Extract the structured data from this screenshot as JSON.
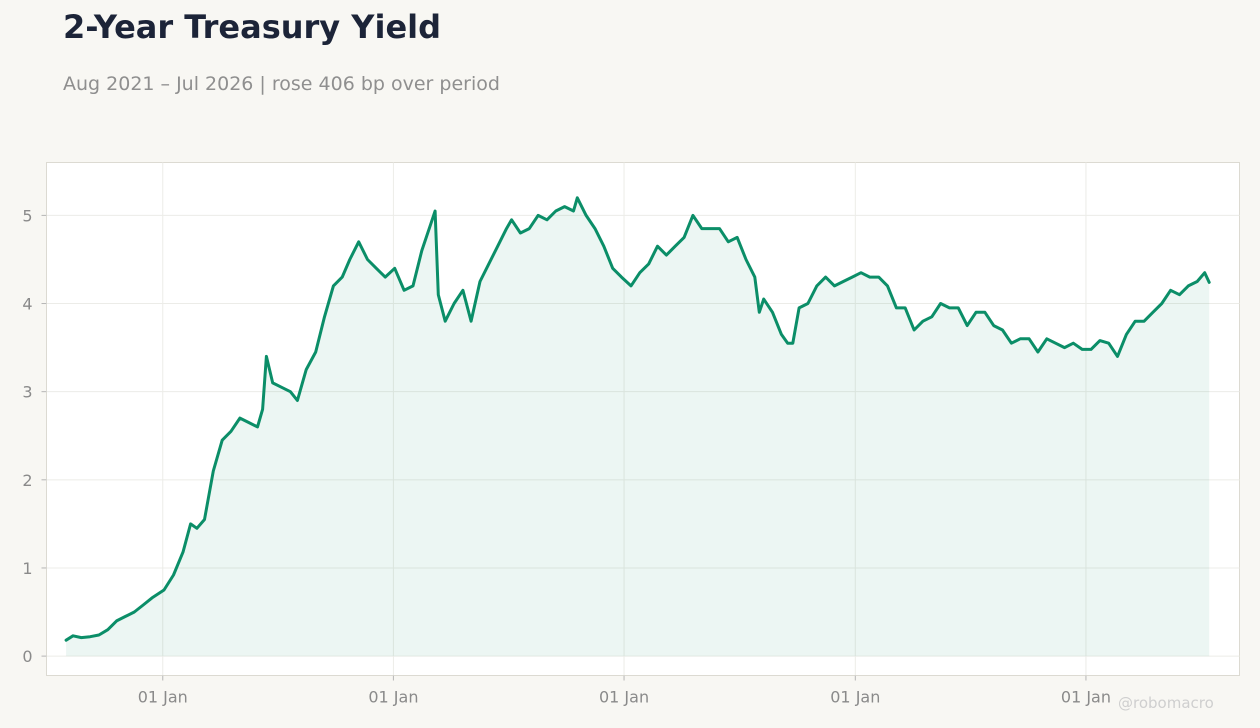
{
  "header": {
    "title": "2-Year Treasury Yield",
    "subtitle": "Aug 2021 – Jul 2026 | rose 406 bp over period"
  },
  "watermark": "@robomacro",
  "colors": {
    "background": "#f8f7f3",
    "plot_background": "#ffffff",
    "line": "#0b8e68",
    "fill": "#0b8e68"
  },
  "chart_data": {
    "type": "area",
    "title": "2-Year Treasury Yield",
    "xlabel": "",
    "ylabel": "",
    "grid": true,
    "legend": "none",
    "xlim": [
      "2021-07-01",
      "2026-09-01"
    ],
    "ylim": [
      -0.22,
      5.6
    ],
    "yticks": [
      0,
      1,
      2,
      3,
      4,
      5
    ],
    "xticks": [
      {
        "date": "2022-01-01",
        "label": "01 Jan"
      },
      {
        "date": "2023-01-01",
        "label": "01 Jan"
      },
      {
        "date": "2024-01-01",
        "label": "01 Jan"
      },
      {
        "date": "2025-01-01",
        "label": "01 Jan"
      },
      {
        "date": "2026-01-01",
        "label": "01 Jan"
      }
    ],
    "series": [
      {
        "points": [
          [
            "2021-08-01",
            0.18
          ],
          [
            "2021-08-12",
            0.23
          ],
          [
            "2021-08-25",
            0.21
          ],
          [
            "2021-09-08",
            0.22
          ],
          [
            "2021-09-22",
            0.24
          ],
          [
            "2021-10-06",
            0.3
          ],
          [
            "2021-10-20",
            0.4
          ],
          [
            "2021-11-03",
            0.45
          ],
          [
            "2021-11-17",
            0.5
          ],
          [
            "2021-12-01",
            0.58
          ],
          [
            "2021-12-15",
            0.66
          ],
          [
            "2022-01-03",
            0.75
          ],
          [
            "2022-01-18",
            0.92
          ],
          [
            "2022-02-02",
            1.18
          ],
          [
            "2022-02-14",
            1.5
          ],
          [
            "2022-02-24",
            1.45
          ],
          [
            "2022-03-08",
            1.55
          ],
          [
            "2022-03-22",
            2.1
          ],
          [
            "2022-04-05",
            2.45
          ],
          [
            "2022-04-19",
            2.55
          ],
          [
            "2022-05-03",
            2.7
          ],
          [
            "2022-05-17",
            2.65
          ],
          [
            "2022-05-31",
            2.6
          ],
          [
            "2022-06-08",
            2.8
          ],
          [
            "2022-06-14",
            3.4
          ],
          [
            "2022-06-24",
            3.1
          ],
          [
            "2022-07-08",
            3.05
          ],
          [
            "2022-07-22",
            3.0
          ],
          [
            "2022-08-02",
            2.9
          ],
          [
            "2022-08-16",
            3.25
          ],
          [
            "2022-08-31",
            3.45
          ],
          [
            "2022-09-14",
            3.85
          ],
          [
            "2022-09-28",
            4.2
          ],
          [
            "2022-10-12",
            4.3
          ],
          [
            "2022-10-24",
            4.5
          ],
          [
            "2022-11-07",
            4.7
          ],
          [
            "2022-11-21",
            4.5
          ],
          [
            "2022-12-05",
            4.4
          ],
          [
            "2022-12-19",
            4.3
          ],
          [
            "2023-01-03",
            4.4
          ],
          [
            "2023-01-18",
            4.15
          ],
          [
            "2023-02-01",
            4.2
          ],
          [
            "2023-02-15",
            4.6
          ],
          [
            "2023-03-01",
            4.9
          ],
          [
            "2023-03-08",
            5.05
          ],
          [
            "2023-03-13",
            4.1
          ],
          [
            "2023-03-24",
            3.8
          ],
          [
            "2023-04-07",
            4.0
          ],
          [
            "2023-04-21",
            4.15
          ],
          [
            "2023-05-04",
            3.8
          ],
          [
            "2023-05-18",
            4.25
          ],
          [
            "2023-06-01",
            4.45
          ],
          [
            "2023-06-15",
            4.65
          ],
          [
            "2023-06-29",
            4.85
          ],
          [
            "2023-07-07",
            4.95
          ],
          [
            "2023-07-21",
            4.8
          ],
          [
            "2023-08-04",
            4.85
          ],
          [
            "2023-08-18",
            5.0
          ],
          [
            "2023-09-01",
            4.95
          ],
          [
            "2023-09-15",
            5.05
          ],
          [
            "2023-09-29",
            5.1
          ],
          [
            "2023-10-13",
            5.05
          ],
          [
            "2023-10-19",
            5.2
          ],
          [
            "2023-11-02",
            5.0
          ],
          [
            "2023-11-16",
            4.85
          ],
          [
            "2023-11-30",
            4.65
          ],
          [
            "2023-12-14",
            4.4
          ],
          [
            "2023-12-28",
            4.3
          ],
          [
            "2024-01-12",
            4.2
          ],
          [
            "2024-01-26",
            4.35
          ],
          [
            "2024-02-09",
            4.45
          ],
          [
            "2024-02-23",
            4.65
          ],
          [
            "2024-03-08",
            4.55
          ],
          [
            "2024-03-22",
            4.65
          ],
          [
            "2024-04-05",
            4.75
          ],
          [
            "2024-04-19",
            5.0
          ],
          [
            "2024-05-03",
            4.85
          ],
          [
            "2024-05-17",
            4.85
          ],
          [
            "2024-05-31",
            4.85
          ],
          [
            "2024-06-14",
            4.7
          ],
          [
            "2024-06-28",
            4.75
          ],
          [
            "2024-07-12",
            4.5
          ],
          [
            "2024-07-26",
            4.3
          ],
          [
            "2024-08-02",
            3.9
          ],
          [
            "2024-08-09",
            4.05
          ],
          [
            "2024-08-23",
            3.9
          ],
          [
            "2024-09-06",
            3.65
          ],
          [
            "2024-09-16",
            3.55
          ],
          [
            "2024-09-24",
            3.55
          ],
          [
            "2024-10-04",
            3.95
          ],
          [
            "2024-10-18",
            4.0
          ],
          [
            "2024-11-01",
            4.2
          ],
          [
            "2024-11-15",
            4.3
          ],
          [
            "2024-11-29",
            4.2
          ],
          [
            "2024-12-13",
            4.25
          ],
          [
            "2024-12-27",
            4.3
          ],
          [
            "2025-01-10",
            4.35
          ],
          [
            "2025-01-24",
            4.3
          ],
          [
            "2025-02-07",
            4.3
          ],
          [
            "2025-02-21",
            4.2
          ],
          [
            "2025-03-07",
            3.95
          ],
          [
            "2025-03-21",
            3.95
          ],
          [
            "2025-04-04",
            3.7
          ],
          [
            "2025-04-18",
            3.8
          ],
          [
            "2025-05-02",
            3.85
          ],
          [
            "2025-05-16",
            4.0
          ],
          [
            "2025-05-30",
            3.95
          ],
          [
            "2025-06-13",
            3.95
          ],
          [
            "2025-06-27",
            3.75
          ],
          [
            "2025-07-11",
            3.9
          ],
          [
            "2025-07-25",
            3.9
          ],
          [
            "2025-08-08",
            3.75
          ],
          [
            "2025-08-22",
            3.7
          ],
          [
            "2025-09-05",
            3.55
          ],
          [
            "2025-09-19",
            3.6
          ],
          [
            "2025-10-03",
            3.6
          ],
          [
            "2025-10-17",
            3.45
          ],
          [
            "2025-10-31",
            3.6
          ],
          [
            "2025-11-14",
            3.55
          ],
          [
            "2025-11-28",
            3.5
          ],
          [
            "2025-12-12",
            3.55
          ],
          [
            "2025-12-26",
            3.48
          ],
          [
            "2026-01-09",
            3.48
          ],
          [
            "2026-01-23",
            3.58
          ],
          [
            "2026-02-06",
            3.55
          ],
          [
            "2026-02-20",
            3.4
          ],
          [
            "2026-03-06",
            3.65
          ],
          [
            "2026-03-20",
            3.8
          ],
          [
            "2026-04-03",
            3.8
          ],
          [
            "2026-04-17",
            3.9
          ],
          [
            "2026-05-01",
            4.0
          ],
          [
            "2026-05-15",
            4.15
          ],
          [
            "2026-05-29",
            4.1
          ],
          [
            "2026-06-12",
            4.2
          ],
          [
            "2026-06-26",
            4.25
          ],
          [
            "2026-07-08",
            4.35
          ],
          [
            "2026-07-15",
            4.24
          ]
        ]
      }
    ]
  }
}
